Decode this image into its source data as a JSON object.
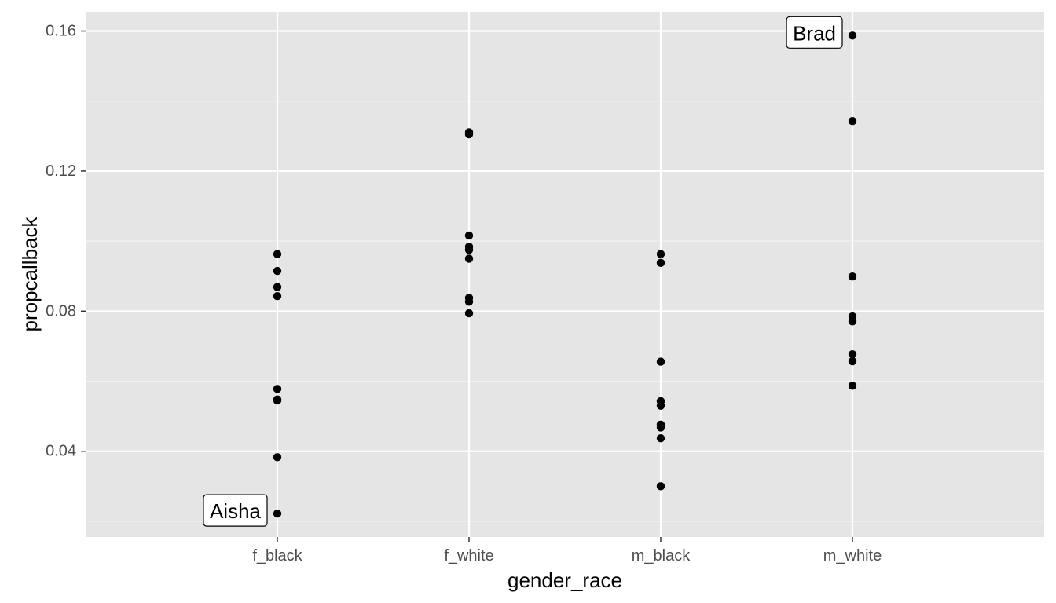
{
  "chart_data": {
    "type": "scatter",
    "xlabel": "gender_race",
    "ylabel": "propcallback",
    "categories": [
      "f_black",
      "f_white",
      "m_black",
      "m_white"
    ],
    "y_ticks": [
      0.04,
      0.08,
      0.12,
      0.16
    ],
    "y_tick_labels": [
      "0.04",
      "0.08",
      "0.12",
      "0.16"
    ],
    "ylim": [
      0.0155,
      0.1655
    ],
    "grid": true,
    "points": [
      {
        "x": "f_black",
        "y": 0.0963
      },
      {
        "x": "f_black",
        "y": 0.0915
      },
      {
        "x": "f_black",
        "y": 0.0869
      },
      {
        "x": "f_black",
        "y": 0.0843
      },
      {
        "x": "f_black",
        "y": 0.0578
      },
      {
        "x": "f_black",
        "y": 0.0548
      },
      {
        "x": "f_black",
        "y": 0.0545
      },
      {
        "x": "f_black",
        "y": 0.0383
      },
      {
        "x": "f_black",
        "y": 0.0222
      },
      {
        "x": "f_white",
        "y": 0.1311
      },
      {
        "x": "f_white",
        "y": 0.1305
      },
      {
        "x": "f_white",
        "y": 0.1016
      },
      {
        "x": "f_white",
        "y": 0.0984
      },
      {
        "x": "f_white",
        "y": 0.0975
      },
      {
        "x": "f_white",
        "y": 0.095
      },
      {
        "x": "f_white",
        "y": 0.0838
      },
      {
        "x": "f_white",
        "y": 0.0827
      },
      {
        "x": "f_white",
        "y": 0.0794
      },
      {
        "x": "m_black",
        "y": 0.0963
      },
      {
        "x": "m_black",
        "y": 0.0938
      },
      {
        "x": "m_black",
        "y": 0.0656
      },
      {
        "x": "m_black",
        "y": 0.0543
      },
      {
        "x": "m_black",
        "y": 0.053
      },
      {
        "x": "m_black",
        "y": 0.0476
      },
      {
        "x": "m_black",
        "y": 0.0468
      },
      {
        "x": "m_black",
        "y": 0.0437
      },
      {
        "x": "m_black",
        "y": 0.03
      },
      {
        "x": "m_white",
        "y": 0.1587
      },
      {
        "x": "m_white",
        "y": 0.1343
      },
      {
        "x": "m_white",
        "y": 0.0899
      },
      {
        "x": "m_white",
        "y": 0.0785
      },
      {
        "x": "m_white",
        "y": 0.0771
      },
      {
        "x": "m_white",
        "y": 0.0677
      },
      {
        "x": "m_white",
        "y": 0.0657
      },
      {
        "x": "m_white",
        "y": 0.0587
      }
    ],
    "annotations": [
      {
        "text": "Aisha",
        "x": "f_black",
        "y": 0.0222
      },
      {
        "text": "Brad",
        "x": "m_white",
        "y": 0.1587
      }
    ],
    "colors": {
      "panel_background": "#e5e5e5",
      "grid_major": "#ffffff",
      "grid_minor": "#f2f2f2",
      "point": "#000000",
      "tick_text": "#4d4d4d",
      "tick_mark": "#333333"
    }
  }
}
